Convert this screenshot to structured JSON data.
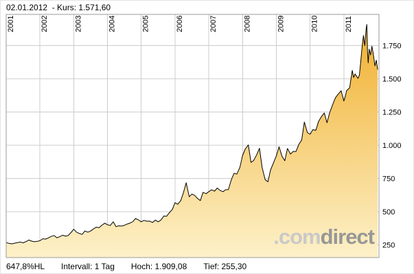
{
  "header": {
    "text": "02.01.2012  - Kurs: 1.571,60"
  },
  "footer": {
    "change": "647,8%HL",
    "interval": "Intervall: 1 Tag",
    "high": "Hoch: 1.909,08",
    "low": "Tief: 255,30"
  },
  "watermark": {
    "com": ".com",
    "direct": "direct"
  },
  "chart_data": {
    "type": "area",
    "title": "",
    "xlabel": "",
    "ylabel": "",
    "last_price": 1571.6,
    "last_date": "02.01.2012",
    "high": 1909.08,
    "low": 255.3,
    "interval": "1 Tag",
    "xlim": [
      2001.0,
      2012.04
    ],
    "ylim": [
      155,
      1985
    ],
    "x_gridlines": [
      2001,
      2002,
      2003,
      2004,
      2005,
      2006,
      2007,
      2008,
      2009,
      2010,
      2011
    ],
    "x_tick_labels": [
      "2001",
      "2002",
      "2003",
      "2004",
      "2005",
      "2006",
      "2007",
      "2008",
      "2009",
      "2010",
      "2011"
    ],
    "y_gridlines": [
      250,
      500,
      750,
      1000,
      1250,
      1500,
      1750
    ],
    "y_tick_labels": [
      "250",
      "500",
      "750",
      "1.000",
      "1.250",
      "1.500",
      "1.750"
    ],
    "grid_color": "#cccccc",
    "border_color": "#9a9a9a",
    "line_color": "#000000",
    "fill_top": "#f0ad28",
    "fill_bottom": "#fdf1c9",
    "points": [
      [
        2001.0,
        268
      ],
      [
        2001.08,
        262
      ],
      [
        2001.17,
        258
      ],
      [
        2001.25,
        263
      ],
      [
        2001.33,
        267
      ],
      [
        2001.42,
        272
      ],
      [
        2001.5,
        266
      ],
      [
        2001.58,
        274
      ],
      [
        2001.67,
        287
      ],
      [
        2001.75,
        279
      ],
      [
        2001.83,
        274
      ],
      [
        2001.92,
        277
      ],
      [
        2002.0,
        282
      ],
      [
        2002.08,
        296
      ],
      [
        2002.17,
        294
      ],
      [
        2002.25,
        303
      ],
      [
        2002.33,
        314
      ],
      [
        2002.42,
        321
      ],
      [
        2002.5,
        304
      ],
      [
        2002.58,
        311
      ],
      [
        2002.67,
        323
      ],
      [
        2002.75,
        317
      ],
      [
        2002.83,
        320
      ],
      [
        2002.92,
        343
      ],
      [
        2003.0,
        368
      ],
      [
        2003.08,
        347
      ],
      [
        2003.17,
        336
      ],
      [
        2003.25,
        329
      ],
      [
        2003.33,
        355
      ],
      [
        2003.42,
        346
      ],
      [
        2003.5,
        355
      ],
      [
        2003.58,
        370
      ],
      [
        2003.67,
        384
      ],
      [
        2003.75,
        380
      ],
      [
        2003.83,
        398
      ],
      [
        2003.92,
        414
      ],
      [
        2004.0,
        402
      ],
      [
        2004.08,
        396
      ],
      [
        2004.17,
        424
      ],
      [
        2004.25,
        388
      ],
      [
        2004.33,
        394
      ],
      [
        2004.42,
        392
      ],
      [
        2004.5,
        398
      ],
      [
        2004.58,
        407
      ],
      [
        2004.67,
        415
      ],
      [
        2004.75,
        425
      ],
      [
        2004.83,
        449
      ],
      [
        2004.92,
        438
      ],
      [
        2005.0,
        424
      ],
      [
        2005.08,
        435
      ],
      [
        2005.17,
        428
      ],
      [
        2005.25,
        429
      ],
      [
        2005.33,
        419
      ],
      [
        2005.42,
        437
      ],
      [
        2005.5,
        424
      ],
      [
        2005.58,
        437
      ],
      [
        2005.67,
        468
      ],
      [
        2005.75,
        466
      ],
      [
        2005.83,
        492
      ],
      [
        2005.92,
        517
      ],
      [
        2006.0,
        568
      ],
      [
        2006.08,
        556
      ],
      [
        2006.17,
        584
      ],
      [
        2006.25,
        644
      ],
      [
        2006.33,
        718
      ],
      [
        2006.42,
        613
      ],
      [
        2006.5,
        633
      ],
      [
        2006.58,
        623
      ],
      [
        2006.67,
        599
      ],
      [
        2006.75,
        584
      ],
      [
        2006.83,
        646
      ],
      [
        2006.92,
        636
      ],
      [
        2007.0,
        651
      ],
      [
        2007.08,
        665
      ],
      [
        2007.17,
        655
      ],
      [
        2007.25,
        678
      ],
      [
        2007.33,
        661
      ],
      [
        2007.42,
        651
      ],
      [
        2007.5,
        666
      ],
      [
        2007.58,
        666
      ],
      [
        2007.67,
        743
      ],
      [
        2007.75,
        790
      ],
      [
        2007.83,
        783
      ],
      [
        2007.92,
        834
      ],
      [
        2008.0,
        923
      ],
      [
        2008.08,
        972
      ],
      [
        2008.17,
        1003
      ],
      [
        2008.25,
        871
      ],
      [
        2008.33,
        886
      ],
      [
        2008.42,
        930
      ],
      [
        2008.5,
        977
      ],
      [
        2008.58,
        833
      ],
      [
        2008.67,
        741
      ],
      [
        2008.75,
        725
      ],
      [
        2008.83,
        815
      ],
      [
        2008.92,
        870
      ],
      [
        2009.0,
        920
      ],
      [
        2009.08,
        989
      ],
      [
        2009.17,
        917
      ],
      [
        2009.25,
        884
      ],
      [
        2009.33,
        976
      ],
      [
        2009.42,
        934
      ],
      [
        2009.5,
        954
      ],
      [
        2009.58,
        953
      ],
      [
        2009.67,
        1008
      ],
      [
        2009.75,
        1040
      ],
      [
        2009.83,
        1175
      ],
      [
        2009.92,
        1096
      ],
      [
        2010.0,
        1083
      ],
      [
        2010.08,
        1118
      ],
      [
        2010.17,
        1113
      ],
      [
        2010.25,
        1180
      ],
      [
        2010.33,
        1214
      ],
      [
        2010.42,
        1243
      ],
      [
        2010.5,
        1170
      ],
      [
        2010.58,
        1246
      ],
      [
        2010.67,
        1307
      ],
      [
        2010.75,
        1358
      ],
      [
        2010.83,
        1384
      ],
      [
        2010.92,
        1410
      ],
      [
        2011.0,
        1333
      ],
      [
        2011.04,
        1365
      ],
      [
        2011.08,
        1412
      ],
      [
        2011.17,
        1432
      ],
      [
        2011.25,
        1564
      ],
      [
        2011.29,
        1510
      ],
      [
        2011.33,
        1537
      ],
      [
        2011.42,
        1503
      ],
      [
        2011.46,
        1530
      ],
      [
        2011.5,
        1629
      ],
      [
        2011.54,
        1740
      ],
      [
        2011.58,
        1826
      ],
      [
        2011.62,
        1750
      ],
      [
        2011.66,
        1880
      ],
      [
        2011.68,
        1909.08
      ],
      [
        2011.7,
        1705
      ],
      [
        2011.72,
        1620
      ],
      [
        2011.75,
        1723
      ],
      [
        2011.79,
        1680
      ],
      [
        2011.83,
        1746
      ],
      [
        2011.87,
        1690
      ],
      [
        2011.92,
        1598
      ],
      [
        2011.96,
        1640
      ],
      [
        2012.0,
        1571.6
      ]
    ]
  }
}
